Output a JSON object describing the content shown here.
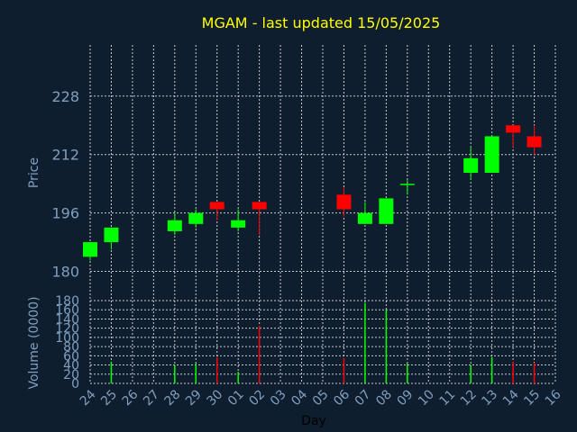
{
  "chart_data": {
    "type": "candlestick",
    "title": "MGAM - last updated 15/05/2025",
    "ylabel": "Price",
    "xlabel": "Day",
    "volume_label": "Volume (0000)",
    "price_ylim": [
      172,
      242
    ],
    "price_ticks": [
      180,
      196,
      212,
      228
    ],
    "volume_ylim": [
      0,
      180
    ],
    "volume_ticks": [
      0,
      20,
      40,
      60,
      80,
      100,
      120,
      140,
      160,
      180
    ],
    "grid": true,
    "x_labels": [
      "24",
      "25",
      "26",
      "27",
      "28",
      "29",
      "30",
      "01",
      "02",
      "03",
      "04",
      "05",
      "06",
      "07",
      "08",
      "09",
      "10",
      "11",
      "12",
      "13",
      "14",
      "15",
      "16"
    ],
    "candles": [
      {
        "day": "24",
        "open": 184,
        "high": 188,
        "low": 183,
        "close": 188
      },
      {
        "day": "25",
        "open": 188,
        "high": 192,
        "low": 186,
        "close": 192
      },
      {
        "day": "28",
        "open": 191,
        "high": 196,
        "low": 190,
        "close": 194
      },
      {
        "day": "29",
        "open": 193,
        "high": 197,
        "low": 192,
        "close": 196
      },
      {
        "day": "30",
        "open": 199,
        "high": 199,
        "low": 194,
        "close": 197
      },
      {
        "day": "01",
        "open": 192,
        "high": 197,
        "low": 191,
        "close": 194
      },
      {
        "day": "02",
        "open": 199,
        "high": 199,
        "low": 190,
        "close": 197
      },
      {
        "day": "06",
        "open": 201,
        "high": 203,
        "low": 195,
        "close": 197
      },
      {
        "day": "07",
        "open": 193,
        "high": 199,
        "low": 193,
        "close": 196
      },
      {
        "day": "08",
        "open": 193,
        "high": 200,
        "low": 193,
        "close": 200
      },
      {
        "day": "09",
        "open": 204,
        "high": 205,
        "low": 201,
        "close": 204
      },
      {
        "day": "12",
        "open": 207,
        "high": 214,
        "low": 205,
        "close": 211
      },
      {
        "day": "13",
        "open": 207,
        "high": 217,
        "low": 207,
        "close": 217
      },
      {
        "day": "14",
        "open": 220,
        "high": 220,
        "low": 214,
        "close": 218
      },
      {
        "day": "15",
        "open": 217,
        "high": 220,
        "low": 212,
        "close": 214
      }
    ],
    "volume": [
      {
        "day": "24",
        "value": 0,
        "direction": "up"
      },
      {
        "day": "25",
        "value": 47,
        "direction": "up"
      },
      {
        "day": "28",
        "value": 40,
        "direction": "up"
      },
      {
        "day": "29",
        "value": 43,
        "direction": "up"
      },
      {
        "day": "30",
        "value": 57,
        "direction": "down"
      },
      {
        "day": "01",
        "value": 25,
        "direction": "up"
      },
      {
        "day": "02",
        "value": 125,
        "direction": "down"
      },
      {
        "day": "06",
        "value": 55,
        "direction": "down"
      },
      {
        "day": "07",
        "value": 175,
        "direction": "up"
      },
      {
        "day": "08",
        "value": 160,
        "direction": "up"
      },
      {
        "day": "09",
        "value": 43,
        "direction": "up"
      },
      {
        "day": "12",
        "value": 40,
        "direction": "up"
      },
      {
        "day": "13",
        "value": 57,
        "direction": "up"
      },
      {
        "day": "14",
        "value": 47,
        "direction": "down"
      },
      {
        "day": "15",
        "value": 45,
        "direction": "down"
      }
    ],
    "colors": {
      "background": "#0f1e2f",
      "up": "#00ff00",
      "down": "#ff0000",
      "grid": "#c8c8c8",
      "text": "#7f9fbf",
      "title": "#ffff00"
    }
  }
}
